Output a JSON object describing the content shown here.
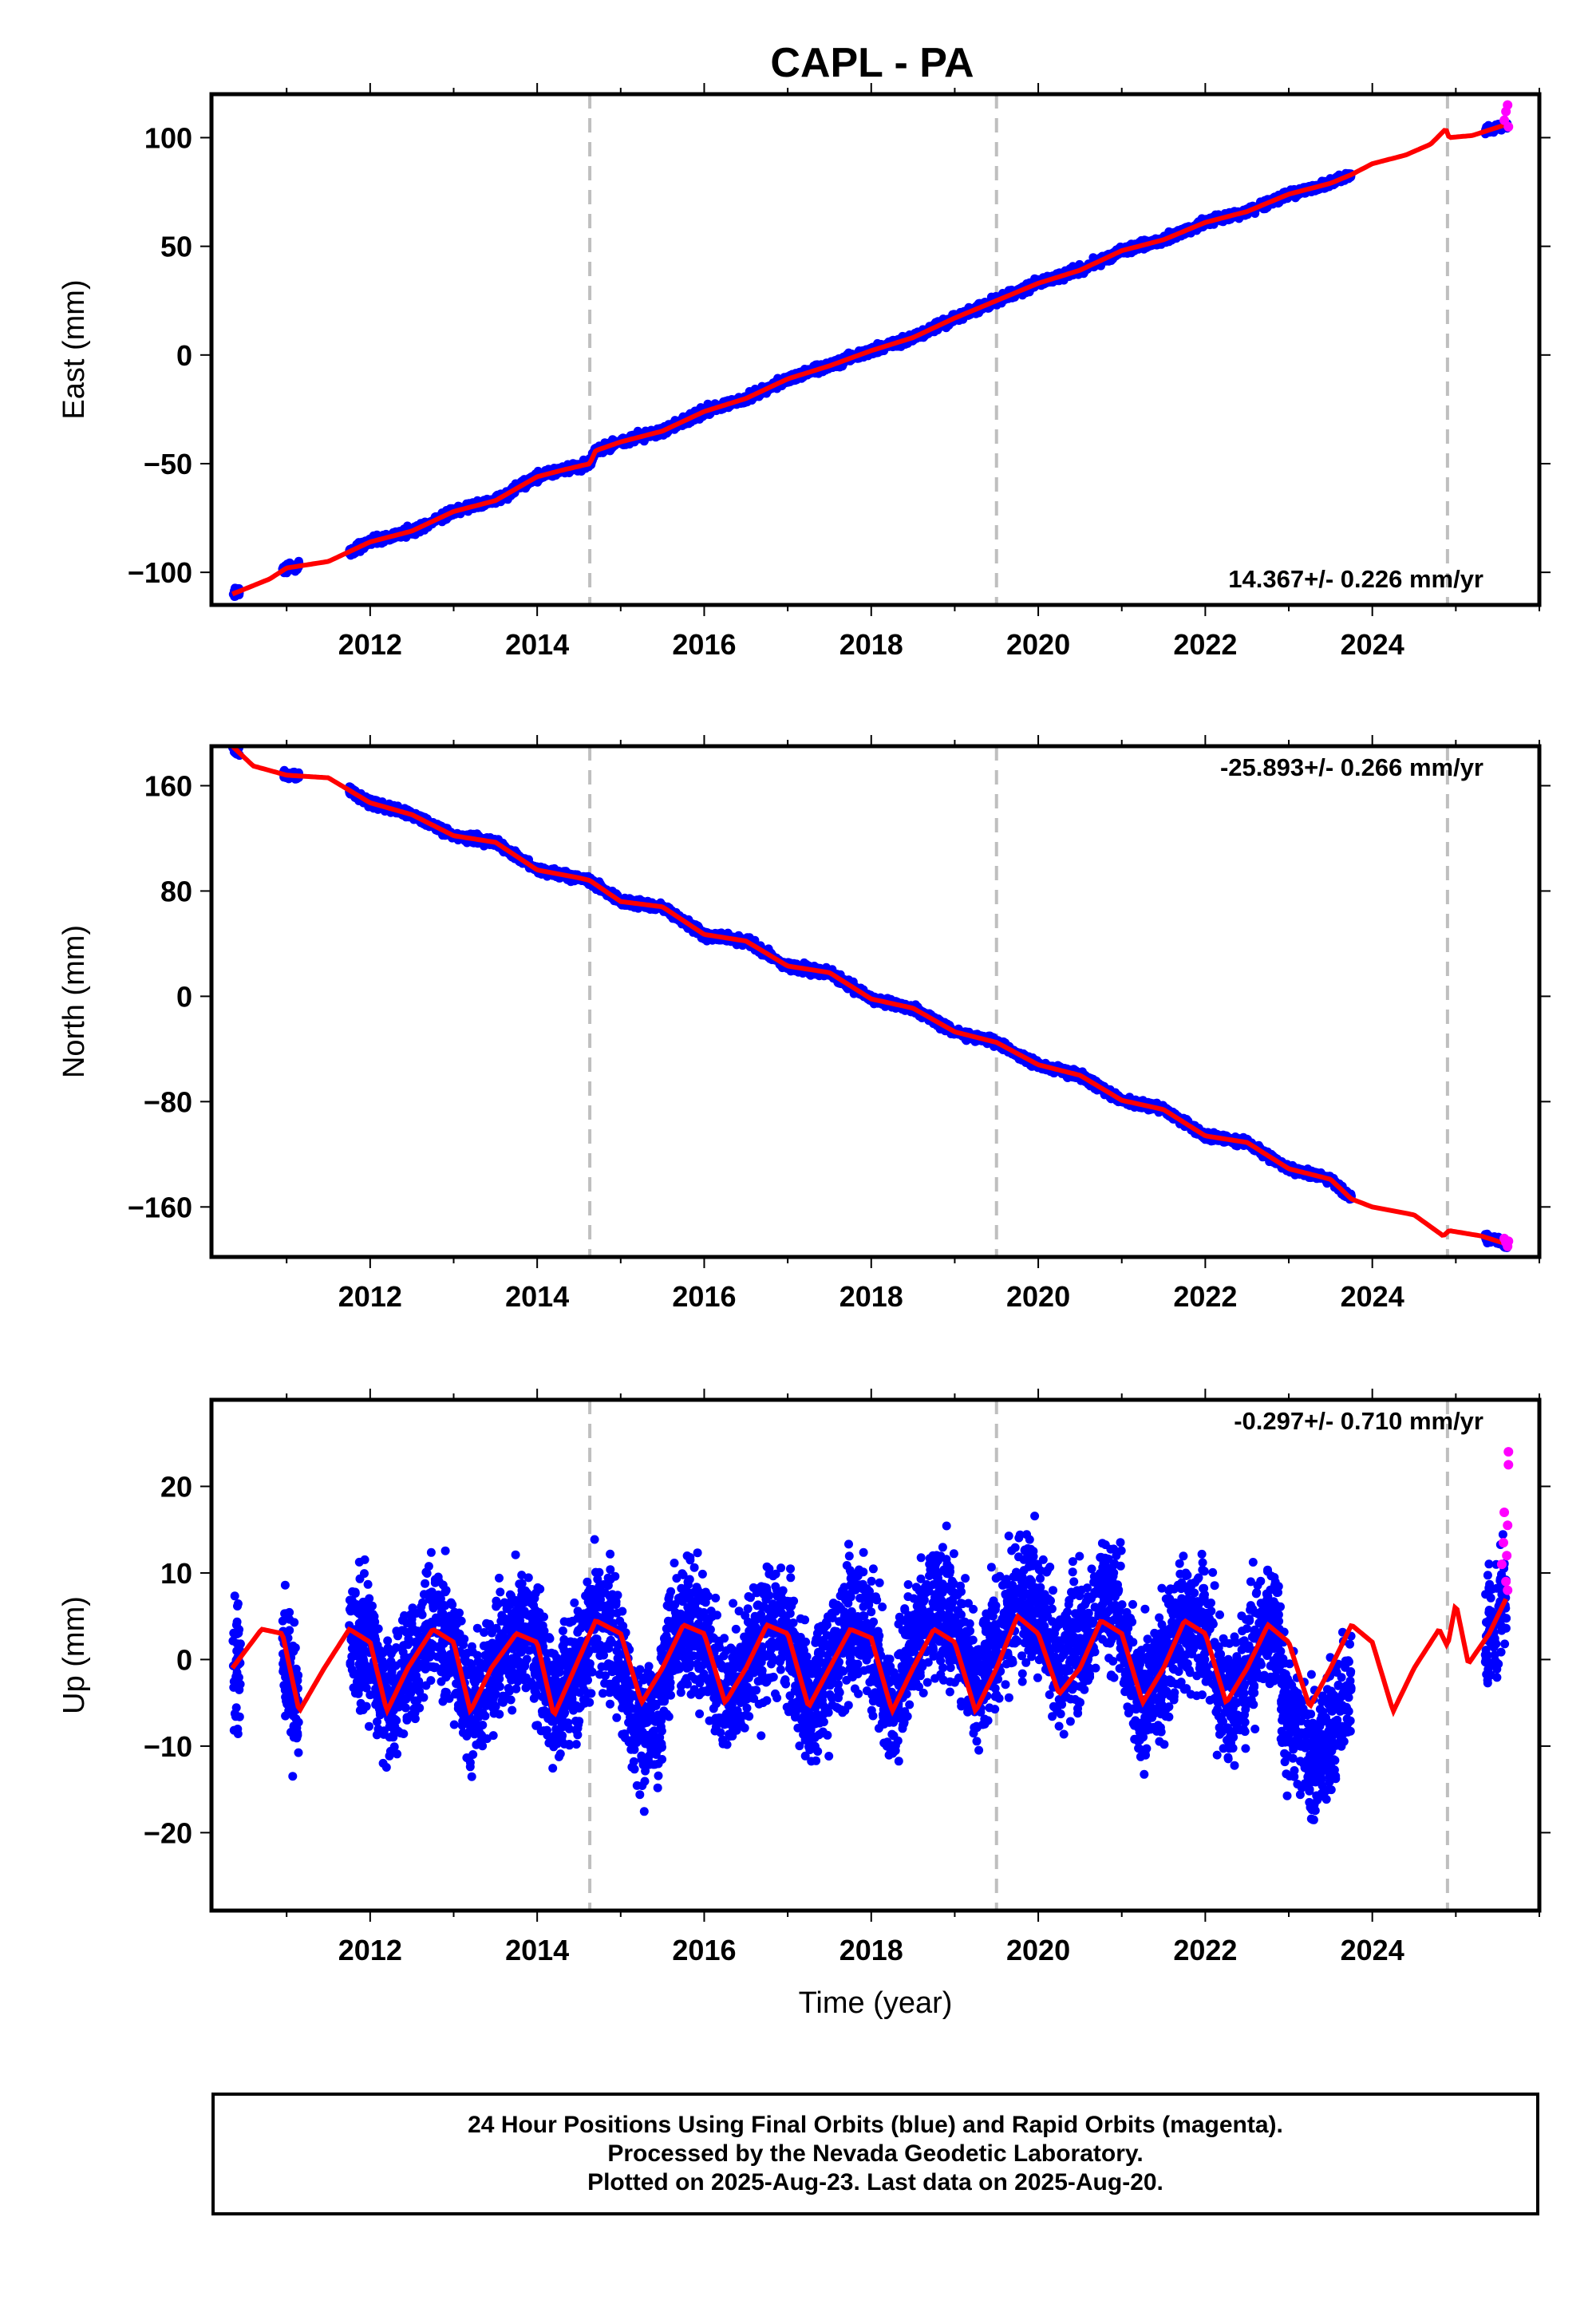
{
  "title": "CAPL - PA",
  "caption": [
    "24 Hour Positions Using Final Orbits (blue) and Rapid Orbits (magenta).",
    "Processed by the Nevada Geodetic Laboratory.",
    "Plotted on 2025-Aug-23. Last data on 2025-Aug-20."
  ],
  "colors": {
    "final_orbits": "#0000ff",
    "rapid_orbits": "#ff00ff",
    "model": "#ff0000",
    "steps": "#bfbfbf"
  },
  "chart_data": [
    {
      "type": "scatter",
      "panel": "east",
      "ylabel": "East (mm)",
      "xlabel": "",
      "xlim": [
        2010.1,
        2026.0
      ],
      "ylim": [
        -115,
        120
      ],
      "xticks": [
        2012,
        2014,
        2016,
        2018,
        2020,
        2022,
        2024
      ],
      "yticks": [
        -100,
        -50,
        0,
        50,
        100
      ],
      "ytick_labels": [
        "−100",
        "−50",
        "0",
        "50",
        "100"
      ],
      "rate_label": "14.367+/- 0.226 mm/yr",
      "step_lines": [
        2014.63,
        2019.5,
        2024.9
      ],
      "final_segments": [
        [
          2010.35,
          2010.45
        ],
        [
          2010.95,
          2011.15
        ],
        [
          2011.75,
          2023.75
        ],
        [
          2025.35,
          2025.62
        ]
      ],
      "rapid_segment": [
        2025.55,
        2025.63
      ],
      "model_line": {
        "x": [
          2010.35,
          2010.8,
          2011.0,
          2011.5,
          2012.0,
          2012.5,
          2013.0,
          2013.5,
          2014.0,
          2014.3,
          2014.63,
          2014.7,
          2015.0,
          2015.5,
          2016.0,
          2016.5,
          2017.0,
          2017.5,
          2018.0,
          2018.5,
          2019.0,
          2019.5,
          2020.0,
          2020.5,
          2021.0,
          2021.5,
          2022.0,
          2022.5,
          2023.0,
          2023.5,
          2023.75,
          2024.0,
          2024.4,
          2024.7,
          2024.88,
          2024.92,
          2025.2,
          2025.6
        ],
        "y": [
          -110,
          -103,
          -98,
          -95,
          -86,
          -81,
          -72,
          -67,
          -56,
          -53,
          -50,
          -44,
          -40,
          -35,
          -26,
          -20,
          -11,
          -5,
          2,
          8,
          17,
          25,
          33,
          39,
          48,
          53,
          61,
          66,
          74,
          79,
          83,
          88,
          92,
          97,
          104,
          100,
          101,
          106
        ]
      },
      "rapid_points": {
        "x": [
          2025.58,
          2025.6,
          2025.62,
          2025.63
        ],
        "y": [
          108,
          112,
          115,
          105
        ]
      }
    },
    {
      "type": "scatter",
      "panel": "north",
      "ylabel": "North (mm)",
      "xlabel": "",
      "xlim": [
        2010.1,
        2026.0
      ],
      "ylim": [
        -198,
        190
      ],
      "xticks": [
        2012,
        2014,
        2016,
        2018,
        2020,
        2022,
        2024
      ],
      "yticks": [
        -160,
        -80,
        0,
        80,
        160
      ],
      "ytick_labels": [
        "−160",
        "−80",
        "0",
        "80",
        "160"
      ],
      "rate_label": "-25.893+/- 0.266 mm/yr",
      "step_lines": [
        2014.63,
        2019.5,
        2024.9
      ],
      "final_segments": [
        [
          2010.35,
          2010.45
        ],
        [
          2010.95,
          2011.15
        ],
        [
          2011.75,
          2023.75
        ],
        [
          2025.35,
          2025.62
        ]
      ],
      "rapid_segment": [
        2025.55,
        2025.63
      ],
      "model_line": {
        "x": [
          2010.35,
          2010.6,
          2011.0,
          2011.5,
          2012.0,
          2012.5,
          2013.0,
          2013.5,
          2014.0,
          2014.5,
          2014.63,
          2015.0,
          2015.5,
          2016.0,
          2016.5,
          2017.0,
          2017.5,
          2018.0,
          2018.5,
          2019.0,
          2019.5,
          2020.0,
          2020.5,
          2021.0,
          2021.5,
          2022.0,
          2022.5,
          2023.0,
          2023.5,
          2023.75,
          2024.0,
          2024.5,
          2024.85,
          2024.92,
          2025.3,
          2025.6
        ],
        "y": [
          190,
          175,
          168,
          166,
          147,
          138,
          122,
          117,
          96,
          90,
          88,
          72,
          68,
          47,
          42,
          23,
          18,
          -2,
          -9,
          -27,
          -35,
          -52,
          -60,
          -79,
          -86,
          -106,
          -111,
          -131,
          -139,
          -154,
          -160,
          -166,
          -182,
          -178,
          -182,
          -188
        ]
      },
      "rapid_points": {
        "x": [
          2025.58,
          2025.6,
          2025.62,
          2025.63
        ],
        "y": [
          -184,
          -187,
          -190,
          -186
        ]
      }
    },
    {
      "type": "scatter",
      "panel": "up",
      "ylabel": "Up (mm)",
      "xlabel": "Time (year)",
      "xlim": [
        2010.1,
        2026.0
      ],
      "ylim": [
        -29,
        30
      ],
      "xticks": [
        2012,
        2014,
        2016,
        2018,
        2020,
        2022,
        2024
      ],
      "yticks": [
        -20,
        -10,
        0,
        10,
        20
      ],
      "ytick_labels": [
        "−20",
        "−10",
        "0",
        "10",
        "20"
      ],
      "rate_label": "-0.297+/- 0.710 mm/yr",
      "step_lines": [
        2014.63,
        2019.5,
        2024.9
      ],
      "final_segments": [
        [
          2010.35,
          2010.45
        ],
        [
          2010.95,
          2011.15
        ],
        [
          2011.75,
          2023.75
        ],
        [
          2025.35,
          2025.62
        ]
      ],
      "rapid_segment": [
        2025.55,
        2025.63
      ],
      "model_line": {
        "x": [
          2010.35,
          2010.7,
          2010.95,
          2011.15,
          2011.45,
          2011.75,
          2012.0,
          2012.2,
          2012.45,
          2012.75,
          2013.0,
          2013.2,
          2013.45,
          2013.75,
          2014.0,
          2014.2,
          2014.45,
          2014.7,
          2015.0,
          2015.25,
          2015.5,
          2015.75,
          2016.0,
          2016.25,
          2016.5,
          2016.75,
          2017.0,
          2017.25,
          2017.5,
          2017.75,
          2018.0,
          2018.25,
          2018.5,
          2018.75,
          2019.0,
          2019.25,
          2019.5,
          2019.75,
          2020.0,
          2020.25,
          2020.5,
          2020.75,
          2021.0,
          2021.25,
          2021.5,
          2021.75,
          2022.0,
          2022.25,
          2022.5,
          2022.75,
          2023.0,
          2023.25,
          2023.5,
          2023.75,
          2024.0,
          2024.25,
          2024.5,
          2024.8,
          2024.9,
          2025.0,
          2025.15,
          2025.4,
          2025.6
        ],
        "y": [
          -1,
          3.5,
          3,
          -6,
          -1,
          3.5,
          2,
          -6,
          -1,
          3.5,
          2,
          -6,
          -1,
          3,
          2,
          -6.5,
          -1,
          4.5,
          3,
          -5,
          -1,
          4,
          3,
          -5,
          -1,
          4,
          3,
          -5.5,
          -1,
          3.5,
          2.5,
          -6,
          -1,
          3.5,
          2,
          -6,
          -1,
          5,
          3,
          -4,
          -1,
          4.5,
          3,
          -5,
          -1,
          4.5,
          3,
          -5,
          -1,
          4,
          2,
          -5.5,
          -1,
          4,
          2,
          -6,
          -1,
          3.5,
          1.5,
          6.5,
          -0.5,
          3,
          7
        ]
      },
      "rapid_points": {
        "x": [
          2025.55,
          2025.57,
          2025.58,
          2025.6,
          2025.61,
          2025.62,
          2025.63,
          2025.63,
          2025.62
        ],
        "y": [
          11,
          13.5,
          17,
          9,
          12,
          15.5,
          22.5,
          24,
          8
        ]
      }
    }
  ]
}
